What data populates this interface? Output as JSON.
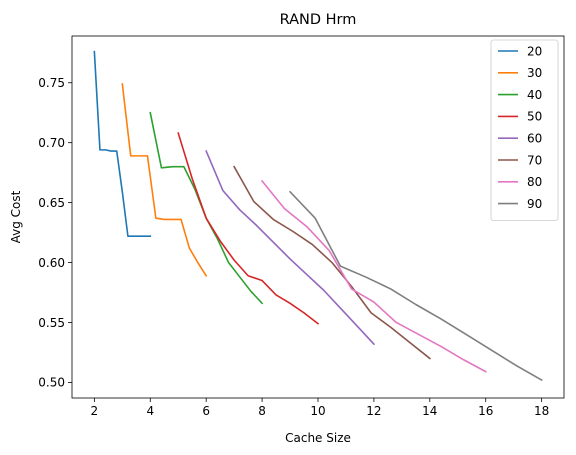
{
  "chart_data": {
    "type": "line",
    "title": "RAND Hrm",
    "xlabel": "Cache Size",
    "ylabel": "Avg Cost",
    "xlim": [
      1.2,
      18.8
    ],
    "ylim": [
      0.487,
      0.789
    ],
    "xticks": [
      2,
      4,
      6,
      8,
      10,
      12,
      14,
      16,
      18
    ],
    "yticks": [
      0.5,
      0.55,
      0.6,
      0.65,
      0.7,
      0.75
    ],
    "ytick_labels": [
      "0.50",
      "0.55",
      "0.60",
      "0.65",
      "0.70",
      "0.75"
    ],
    "grid": false,
    "legend_position": "upper-right",
    "series": [
      {
        "name": "20",
        "color": "#1f77b4",
        "x": [
          2.0,
          2.2,
          2.4,
          2.6,
          2.8,
          3.0,
          3.2,
          3.4,
          3.6,
          3.8,
          4.0
        ],
        "y": [
          0.776,
          0.694,
          0.694,
          0.693,
          0.693,
          0.659,
          0.622,
          0.622,
          0.622,
          0.622,
          0.622
        ]
      },
      {
        "name": "30",
        "color": "#ff7f0e",
        "x": [
          3.0,
          3.3,
          3.6,
          3.9,
          4.2,
          4.5,
          4.8,
          5.1,
          5.4,
          5.7,
          6.0
        ],
        "y": [
          0.749,
          0.689,
          0.689,
          0.689,
          0.637,
          0.636,
          0.636,
          0.636,
          0.612,
          0.6,
          0.589
        ]
      },
      {
        "name": "40",
        "color": "#2ca02c",
        "x": [
          4.0,
          4.4,
          4.8,
          5.2,
          5.6,
          6.0,
          6.4,
          6.8,
          7.2,
          7.6,
          8.0
        ],
        "y": [
          0.725,
          0.679,
          0.68,
          0.68,
          0.661,
          0.637,
          0.62,
          0.6,
          0.588,
          0.576,
          0.566
        ]
      },
      {
        "name": "50",
        "color": "#d62728",
        "x": [
          5.0,
          5.5,
          6.0,
          6.5,
          7.0,
          7.5,
          8.0,
          8.5,
          9.0,
          9.5,
          10.0
        ],
        "y": [
          0.708,
          0.67,
          0.637,
          0.618,
          0.602,
          0.589,
          0.585,
          0.573,
          0.566,
          0.558,
          0.549
        ]
      },
      {
        "name": "60",
        "color": "#9467bd",
        "x": [
          6.0,
          6.6,
          7.2,
          7.8,
          8.4,
          9.0,
          9.6,
          10.2,
          10.8,
          11.4,
          12.0
        ],
        "y": [
          0.693,
          0.66,
          0.644,
          0.631,
          0.617,
          0.603,
          0.59,
          0.577,
          0.562,
          0.547,
          0.532
        ]
      },
      {
        "name": "70",
        "color": "#8c564b",
        "x": [
          7.0,
          7.7,
          8.4,
          9.1,
          9.8,
          10.5,
          11.2,
          11.9,
          12.6,
          13.3,
          14.0
        ],
        "y": [
          0.68,
          0.651,
          0.636,
          0.626,
          0.615,
          0.6,
          0.58,
          0.558,
          0.546,
          0.533,
          0.52
        ]
      },
      {
        "name": "80",
        "color": "#e377c2",
        "x": [
          8.0,
          8.8,
          9.6,
          10.4,
          11.2,
          12.0,
          12.8,
          13.6,
          14.4,
          15.2,
          16.0
        ],
        "y": [
          0.668,
          0.645,
          0.63,
          0.61,
          0.578,
          0.567,
          0.55,
          0.54,
          0.53,
          0.519,
          0.509
        ]
      },
      {
        "name": "90",
        "color": "#7f7f7f",
        "x": [
          9.0,
          9.9,
          10.8,
          11.7,
          12.6,
          13.5,
          14.4,
          15.3,
          16.2,
          17.1,
          18.0
        ],
        "y": [
          0.659,
          0.637,
          0.597,
          0.588,
          0.578,
          0.565,
          0.553,
          0.54,
          0.527,
          0.514,
          0.502
        ]
      }
    ]
  }
}
